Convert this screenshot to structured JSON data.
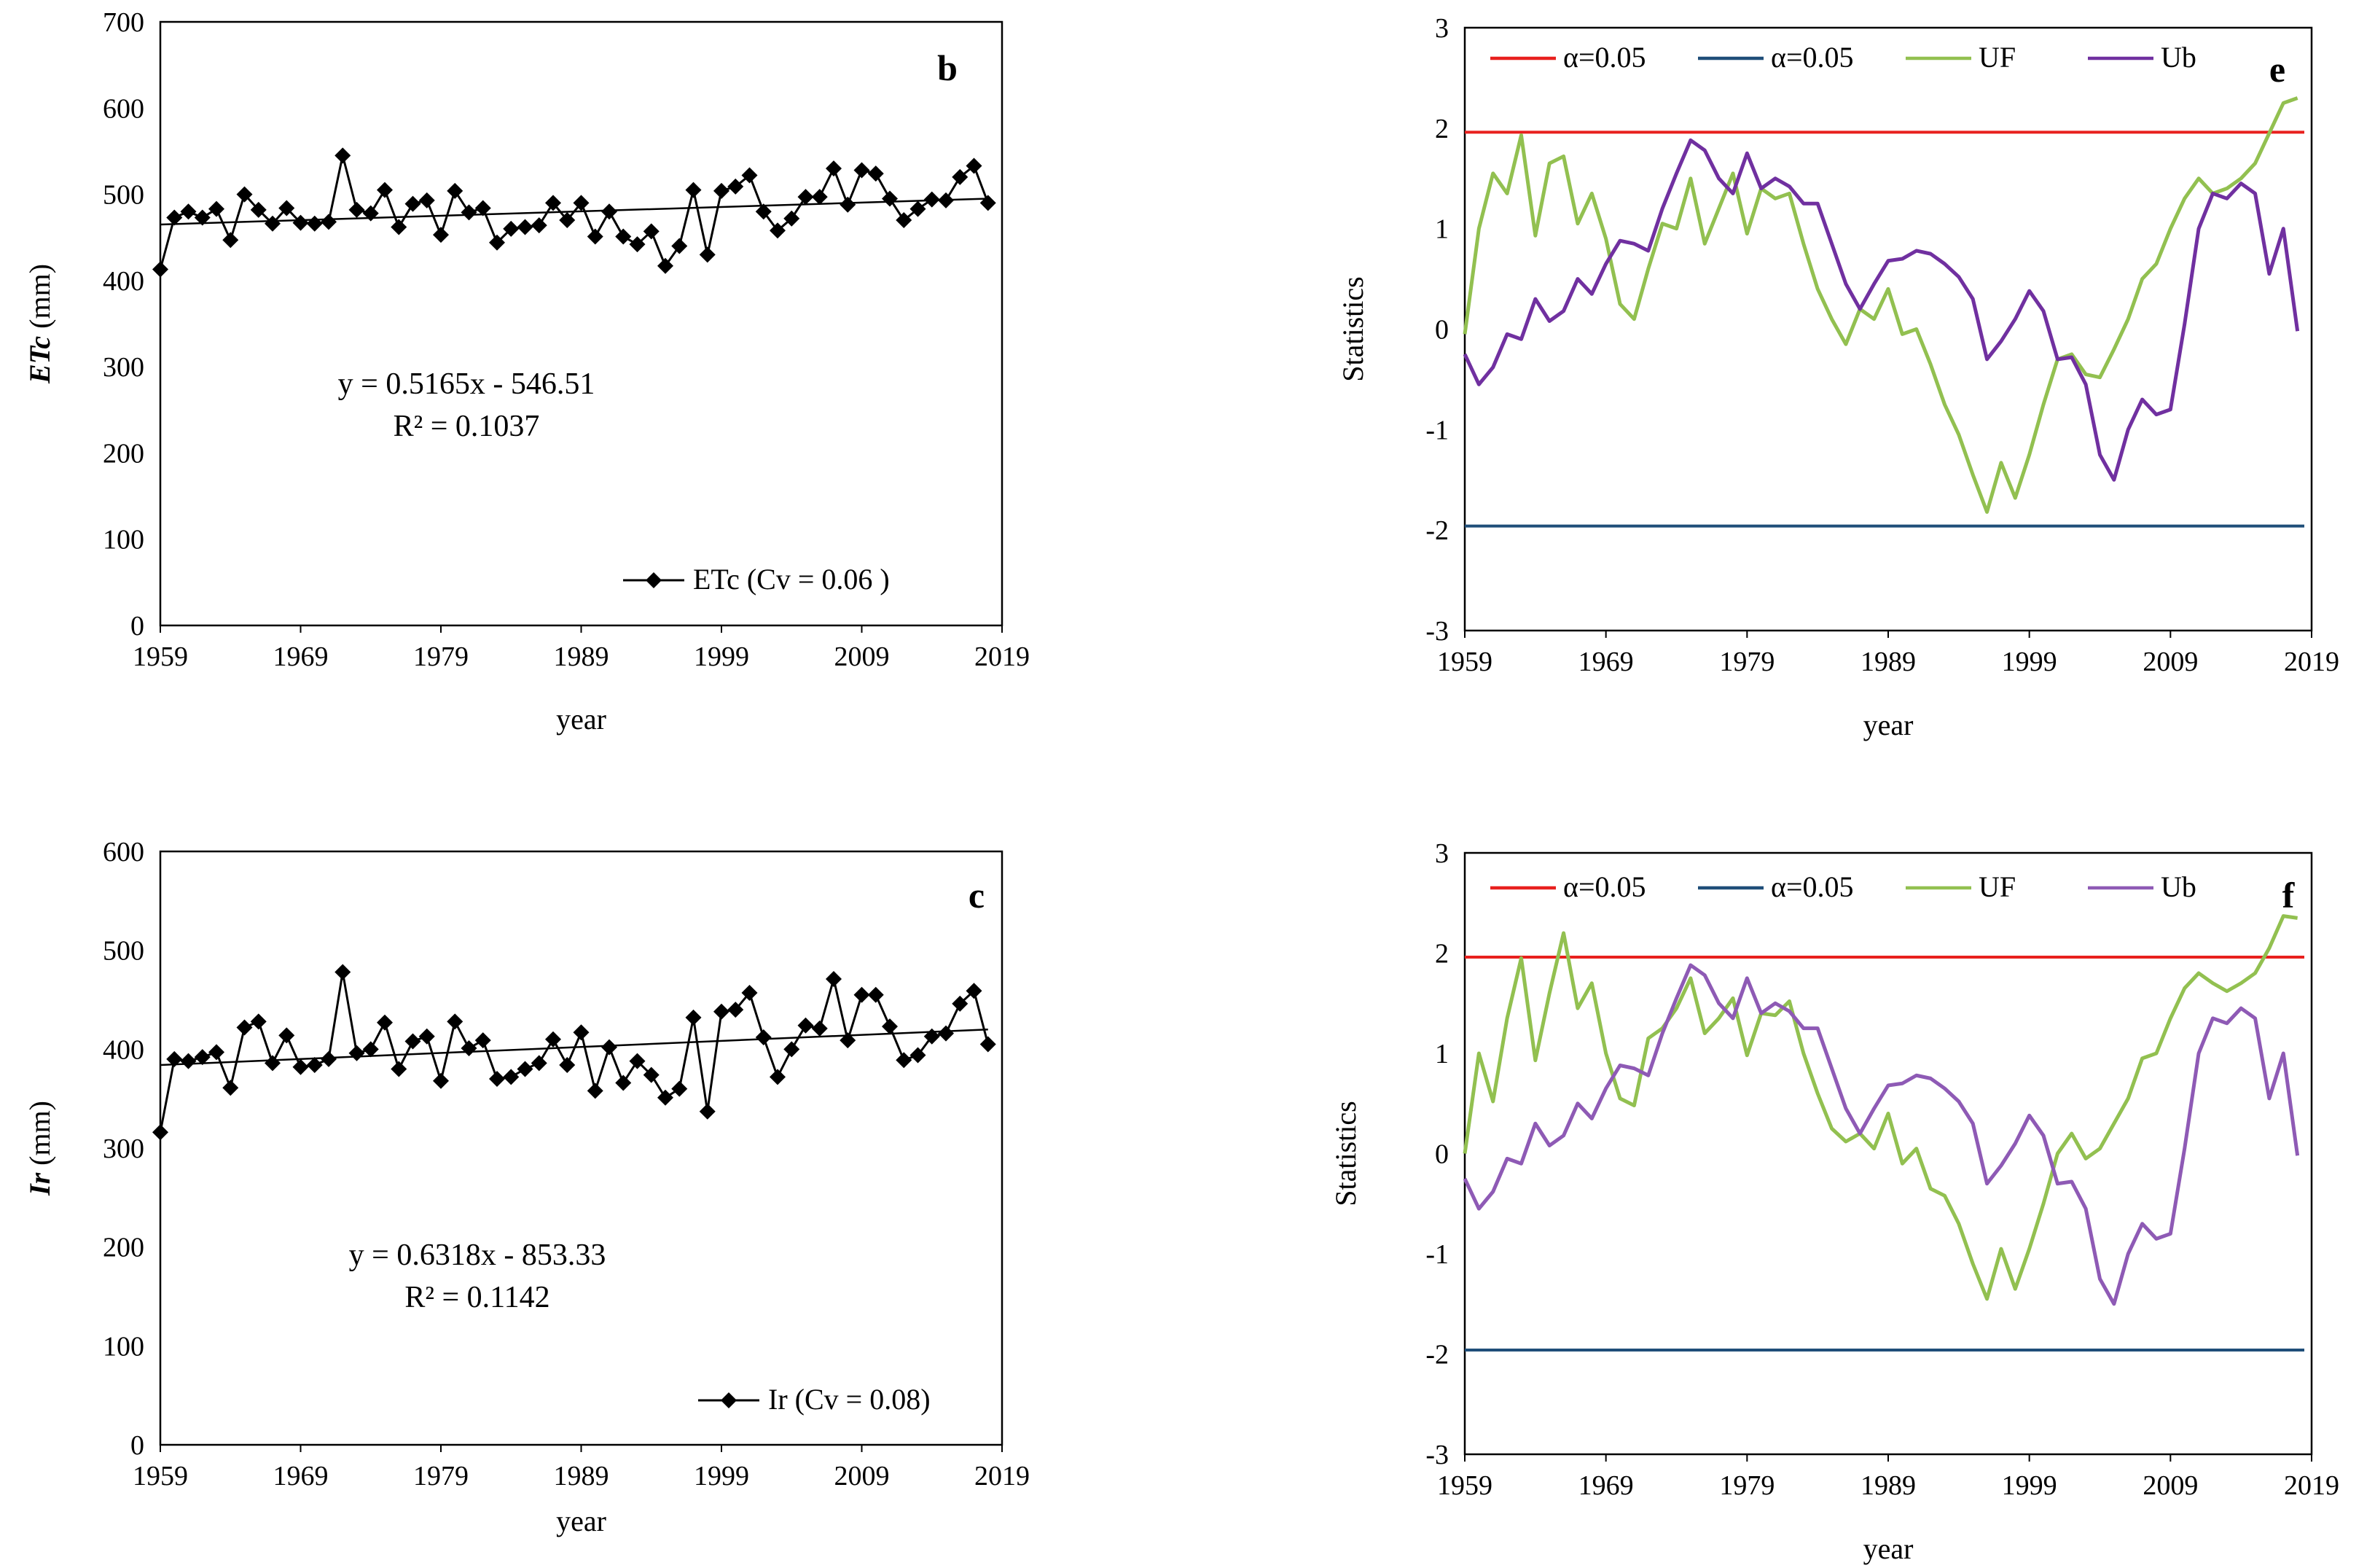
{
  "chart_data": [
    {
      "id": "b",
      "type": "line",
      "panel_label": "b",
      "xlabel": "year",
      "ylabel_italic": "ETc",
      "ylabel_rest": " (mm)",
      "xlim": [
        1959,
        2019
      ],
      "ylim": [
        0,
        700
      ],
      "xticks": [
        1959,
        1969,
        1979,
        1989,
        1999,
        2009,
        2019
      ],
      "yticks": [
        0,
        100,
        200,
        300,
        400,
        500,
        600,
        700
      ],
      "equation": "y = 0.5165x - 546.51",
      "r2": "R² = 0.1037",
      "legend_label": "ETc (Cv = 0.06 )",
      "trendline": [
        [
          1959,
          465
        ],
        [
          2018,
          495
        ]
      ],
      "series": [
        {
          "name": "ETc",
          "marker": "diamond",
          "x": [
            1959,
            1960,
            1961,
            1962,
            1963,
            1964,
            1965,
            1966,
            1967,
            1968,
            1969,
            1970,
            1971,
            1972,
            1973,
            1974,
            1975,
            1976,
            1977,
            1978,
            1979,
            1980,
            1981,
            1982,
            1983,
            1984,
            1985,
            1986,
            1987,
            1988,
            1989,
            1990,
            1991,
            1992,
            1993,
            1994,
            1995,
            1996,
            1997,
            1998,
            1999,
            2000,
            2001,
            2002,
            2003,
            2004,
            2005,
            2006,
            2007,
            2008,
            2009,
            2010,
            2011,
            2012,
            2013,
            2014,
            2015,
            2016,
            2017,
            2018
          ],
          "values": [
            413,
            473,
            480,
            473,
            483,
            447,
            500,
            482,
            466,
            484,
            467,
            466,
            468,
            545,
            482,
            478,
            505,
            462,
            489,
            493,
            453,
            504,
            479,
            484,
            444,
            460,
            462,
            464,
            490,
            470,
            490,
            451,
            480,
            451,
            442,
            457,
            417,
            440,
            505,
            430,
            504,
            509,
            522,
            480,
            458,
            472,
            497,
            497,
            530,
            488,
            528,
            524,
            495,
            470,
            483,
            494,
            493,
            520,
            533,
            490
          ]
        }
      ]
    },
    {
      "id": "c",
      "type": "line",
      "panel_label": "c",
      "xlabel": "year",
      "ylabel_italic": "Ir",
      "ylabel_rest": " (mm)",
      "xlim": [
        1959,
        2019
      ],
      "ylim": [
        0,
        600
      ],
      "xticks": [
        1959,
        1969,
        1979,
        1989,
        1999,
        2009,
        2019
      ],
      "yticks": [
        0,
        100,
        200,
        300,
        400,
        500,
        600
      ],
      "equation": "y = 0.6318x - 853.33",
      "r2": "R² = 0.1142",
      "legend_label": "Ir (Cv = 0.08)",
      "trendline": [
        [
          1959,
          384
        ],
        [
          2018,
          420
        ]
      ],
      "series": [
        {
          "name": "Ir",
          "marker": "diamond",
          "x": [
            1959,
            1960,
            1961,
            1962,
            1963,
            1964,
            1965,
            1966,
            1967,
            1968,
            1969,
            1970,
            1971,
            1972,
            1973,
            1974,
            1975,
            1976,
            1977,
            1978,
            1979,
            1980,
            1981,
            1982,
            1983,
            1984,
            1985,
            1986,
            1987,
            1988,
            1989,
            1990,
            1991,
            1992,
            1993,
            1994,
            1995,
            1996,
            1997,
            1998,
            1999,
            2000,
            2001,
            2002,
            2003,
            2004,
            2005,
            2006,
            2007,
            2008,
            2009,
            2010,
            2011,
            2012,
            2013,
            2014,
            2015,
            2016,
            2017,
            2018
          ],
          "values": [
            316,
            390,
            388,
            392,
            397,
            361,
            422,
            428,
            386,
            414,
            382,
            384,
            390,
            478,
            396,
            400,
            427,
            380,
            408,
            413,
            368,
            428,
            401,
            409,
            370,
            372,
            380,
            386,
            410,
            384,
            417,
            358,
            402,
            366,
            388,
            374,
            351,
            360,
            432,
            337,
            438,
            440,
            457,
            412,
            372,
            400,
            424,
            421,
            471,
            409,
            455,
            455,
            423,
            389,
            394,
            413,
            416,
            446,
            459,
            405
          ]
        }
      ]
    },
    {
      "id": "e",
      "type": "line",
      "panel_label": "e",
      "xlabel": "year",
      "ylabel": "Statistics",
      "xlim": [
        1959,
        2019
      ],
      "ylim": [
        -3,
        3
      ],
      "xticks": [
        1959,
        1969,
        1979,
        1989,
        1999,
        2009,
        2019
      ],
      "yticks": [
        -3,
        -2,
        -1,
        0,
        1,
        2,
        3
      ],
      "colors": {
        "red": "#e8201e",
        "blue": "#1f4e79",
        "uf": "#92c050",
        "ub": "#7030a0"
      },
      "legend": [
        "α=0.05",
        "α=0.05",
        "UF",
        "Ub"
      ],
      "hlines": [
        1.96,
        -1.96
      ],
      "series": [
        {
          "name": "UF",
          "x": [
            1959,
            1960,
            1961,
            1962,
            1963,
            1964,
            1965,
            1966,
            1967,
            1968,
            1969,
            1970,
            1971,
            1972,
            1973,
            1974,
            1975,
            1976,
            1977,
            1978,
            1979,
            1980,
            1981,
            1982,
            1983,
            1984,
            1985,
            1986,
            1987,
            1988,
            1989,
            1990,
            1991,
            1992,
            1993,
            1994,
            1995,
            1996,
            1997,
            1998,
            1999,
            2000,
            2001,
            2002,
            2003,
            2004,
            2005,
            2006,
            2007,
            2008,
            2009,
            2010,
            2011,
            2012,
            2013,
            2014,
            2015,
            2016,
            2017,
            2018
          ],
          "values": [
            -0.05,
            1.0,
            1.55,
            1.35,
            1.93,
            0.93,
            1.65,
            1.72,
            1.05,
            1.35,
            0.9,
            0.25,
            0.1,
            0.6,
            1.05,
            1.0,
            1.5,
            0.85,
            1.2,
            1.55,
            0.95,
            1.4,
            1.3,
            1.35,
            0.85,
            0.4,
            0.1,
            -0.15,
            0.2,
            0.1,
            0.4,
            -0.05,
            0.0,
            -0.35,
            -0.75,
            -1.05,
            -1.45,
            -1.82,
            -1.33,
            -1.68,
            -1.25,
            -0.75,
            -0.3,
            -0.25,
            -0.45,
            -0.48,
            -0.2,
            0.1,
            0.5,
            0.65,
            1.0,
            1.3,
            1.5,
            1.35,
            1.4,
            1.5,
            1.65,
            1.95,
            2.25,
            2.3
          ]
        },
        {
          "name": "Ub",
          "x": [
            1959,
            1960,
            1961,
            1962,
            1963,
            1964,
            1965,
            1966,
            1967,
            1968,
            1969,
            1970,
            1971,
            1972,
            1973,
            1974,
            1975,
            1976,
            1977,
            1978,
            1979,
            1980,
            1981,
            1982,
            1983,
            1984,
            1985,
            1986,
            1987,
            1988,
            1989,
            1990,
            1991,
            1992,
            1993,
            1994,
            1995,
            1996,
            1997,
            1998,
            1999,
            2000,
            2001,
            2002,
            2003,
            2004,
            2005,
            2006,
            2007,
            2008,
            2009,
            2010,
            2011,
            2012,
            2013,
            2014,
            2015,
            2016,
            2017,
            2018
          ],
          "values": [
            -0.25,
            -0.55,
            -0.38,
            -0.05,
            -0.1,
            0.3,
            0.08,
            0.18,
            0.5,
            0.35,
            0.65,
            0.88,
            0.85,
            0.78,
            1.2,
            1.55,
            1.88,
            1.78,
            1.5,
            1.35,
            1.75,
            1.4,
            1.5,
            1.42,
            1.25,
            1.25,
            0.85,
            0.45,
            0.2,
            0.45,
            0.68,
            0.7,
            0.78,
            0.75,
            0.65,
            0.52,
            0.3,
            -0.3,
            -0.12,
            0.1,
            0.38,
            0.18,
            -0.3,
            -0.28,
            -0.55,
            -1.25,
            -1.5,
            -1.0,
            -0.7,
            -0.85,
            -0.8,
            0.05,
            1.0,
            1.35,
            1.3,
            1.45,
            1.35,
            0.55,
            1.0,
            -0.02
          ]
        }
      ]
    },
    {
      "id": "f",
      "type": "line",
      "panel_label": "f",
      "xlabel": "year",
      "ylabel": "Statistics",
      "xlim": [
        1959,
        2019
      ],
      "ylim": [
        -3,
        3
      ],
      "xticks": [
        1959,
        1969,
        1979,
        1989,
        1999,
        2009,
        2019
      ],
      "yticks": [
        -3,
        -2,
        -1,
        0,
        1,
        2,
        3
      ],
      "colors": {
        "red": "#e8201e",
        "blue": "#1f4e79",
        "uf": "#92c050",
        "ub": "#8e5ab5"
      },
      "legend": [
        "α=0.05",
        "α=0.05",
        "UF",
        "Ub"
      ],
      "hlines": [
        1.96,
        -1.96
      ],
      "series": [
        {
          "name": "UF",
          "x": [
            1959,
            1960,
            1961,
            1962,
            1963,
            1964,
            1965,
            1966,
            1967,
            1968,
            1969,
            1970,
            1971,
            1972,
            1973,
            1974,
            1975,
            1976,
            1977,
            1978,
            1979,
            1980,
            1981,
            1982,
            1983,
            1984,
            1985,
            1986,
            1987,
            1988,
            1989,
            1990,
            1991,
            1992,
            1993,
            1994,
            1995,
            1996,
            1997,
            1998,
            1999,
            2000,
            2001,
            2002,
            2003,
            2004,
            2005,
            2006,
            2007,
            2008,
            2009,
            2010,
            2011,
            2012,
            2013,
            2014,
            2015,
            2016,
            2017,
            2018
          ],
          "values": [
            0.0,
            1.0,
            0.52,
            1.35,
            1.95,
            0.93,
            1.6,
            2.2,
            1.45,
            1.7,
            1.0,
            0.55,
            0.48,
            1.15,
            1.25,
            1.45,
            1.75,
            1.2,
            1.35,
            1.55,
            0.98,
            1.4,
            1.38,
            1.52,
            1.0,
            0.6,
            0.25,
            0.12,
            0.2,
            0.05,
            0.4,
            -0.1,
            0.05,
            -0.35,
            -0.42,
            -0.7,
            -1.1,
            -1.45,
            -0.95,
            -1.35,
            -0.95,
            -0.5,
            0.0,
            0.2,
            -0.05,
            0.05,
            0.3,
            0.55,
            0.95,
            1.0,
            1.35,
            1.65,
            1.8,
            1.7,
            1.62,
            1.7,
            1.8,
            2.05,
            2.37,
            2.35
          ]
        },
        {
          "name": "Ub",
          "x": [
            1959,
            1960,
            1961,
            1962,
            1963,
            1964,
            1965,
            1966,
            1967,
            1968,
            1969,
            1970,
            1971,
            1972,
            1973,
            1974,
            1975,
            1976,
            1977,
            1978,
            1979,
            1980,
            1981,
            1982,
            1983,
            1984,
            1985,
            1986,
            1987,
            1988,
            1989,
            1990,
            1991,
            1992,
            1993,
            1994,
            1995,
            1996,
            1997,
            1998,
            1999,
            2000,
            2001,
            2002,
            2003,
            2004,
            2005,
            2006,
            2007,
            2008,
            2009,
            2010,
            2011,
            2012,
            2013,
            2014,
            2015,
            2016,
            2017,
            2018
          ],
          "values": [
            -0.25,
            -0.55,
            -0.38,
            -0.05,
            -0.1,
            0.3,
            0.08,
            0.18,
            0.5,
            0.35,
            0.65,
            0.88,
            0.85,
            0.78,
            1.2,
            1.55,
            1.88,
            1.78,
            1.5,
            1.35,
            1.75,
            1.4,
            1.5,
            1.42,
            1.25,
            1.25,
            0.85,
            0.45,
            0.2,
            0.45,
            0.68,
            0.7,
            0.78,
            0.75,
            0.65,
            0.52,
            0.3,
            -0.3,
            -0.12,
            0.1,
            0.38,
            0.18,
            -0.3,
            -0.28,
            -0.55,
            -1.25,
            -1.5,
            -1.0,
            -0.7,
            -0.85,
            -0.8,
            0.05,
            1.0,
            1.35,
            1.3,
            1.45,
            1.35,
            0.55,
            1.0,
            -0.02
          ]
        }
      ]
    }
  ]
}
